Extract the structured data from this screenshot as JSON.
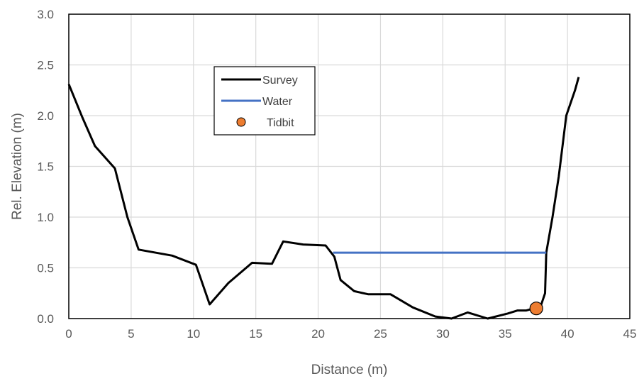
{
  "chart_data": {
    "type": "line",
    "title": "",
    "xlabel": "Distance (m)",
    "ylabel": "Rel. Elevation (m)",
    "xlim": [
      0,
      45
    ],
    "ylim": [
      0,
      3.0
    ],
    "x_ticks": [
      "0",
      "5",
      "10",
      "15",
      "20",
      "25",
      "30",
      "35",
      "40",
      "45"
    ],
    "y_ticks": [
      "0.0",
      "0.5",
      "1.0",
      "1.5",
      "2.0",
      "2.5",
      "3.0"
    ],
    "grid": true,
    "legend_position": "upper-center-left",
    "series": [
      {
        "name": "Survey",
        "kind": "line",
        "color": "#000000",
        "points": [
          [
            0,
            2.31
          ],
          [
            1.1,
            1.98
          ],
          [
            2.1,
            1.7
          ],
          [
            3.7,
            1.48
          ],
          [
            4.7,
            1.0
          ],
          [
            5.6,
            0.68
          ],
          [
            8.3,
            0.62
          ],
          [
            10.2,
            0.53
          ],
          [
            11.3,
            0.14
          ],
          [
            12.8,
            0.35
          ],
          [
            14.7,
            0.55
          ],
          [
            16.3,
            0.54
          ],
          [
            17.2,
            0.76
          ],
          [
            18.8,
            0.73
          ],
          [
            20.6,
            0.72
          ],
          [
            21.3,
            0.61
          ],
          [
            21.8,
            0.38
          ],
          [
            22.9,
            0.27
          ],
          [
            24.0,
            0.24
          ],
          [
            25.8,
            0.24
          ],
          [
            27.6,
            0.11
          ],
          [
            29.4,
            0.02
          ],
          [
            30.7,
            0.0
          ],
          [
            32.0,
            0.06
          ],
          [
            33.6,
            0.0
          ],
          [
            35.2,
            0.05
          ],
          [
            36.0,
            0.08
          ],
          [
            36.7,
            0.08
          ],
          [
            37.3,
            0.1
          ],
          [
            37.9,
            0.14
          ],
          [
            38.2,
            0.25
          ],
          [
            38.3,
            0.65
          ],
          [
            38.8,
            1.0
          ],
          [
            39.3,
            1.4
          ],
          [
            39.9,
            2.0
          ],
          [
            40.6,
            2.25
          ],
          [
            40.9,
            2.38
          ]
        ]
      },
      {
        "name": "Water",
        "kind": "line",
        "color": "#4472C4",
        "points": [
          [
            21.2,
            0.65
          ],
          [
            38.3,
            0.65
          ]
        ]
      },
      {
        "name": "Tidbit",
        "kind": "scatter",
        "color": "#ED7D31",
        "points": [
          [
            37.5,
            0.1
          ]
        ]
      }
    ]
  }
}
